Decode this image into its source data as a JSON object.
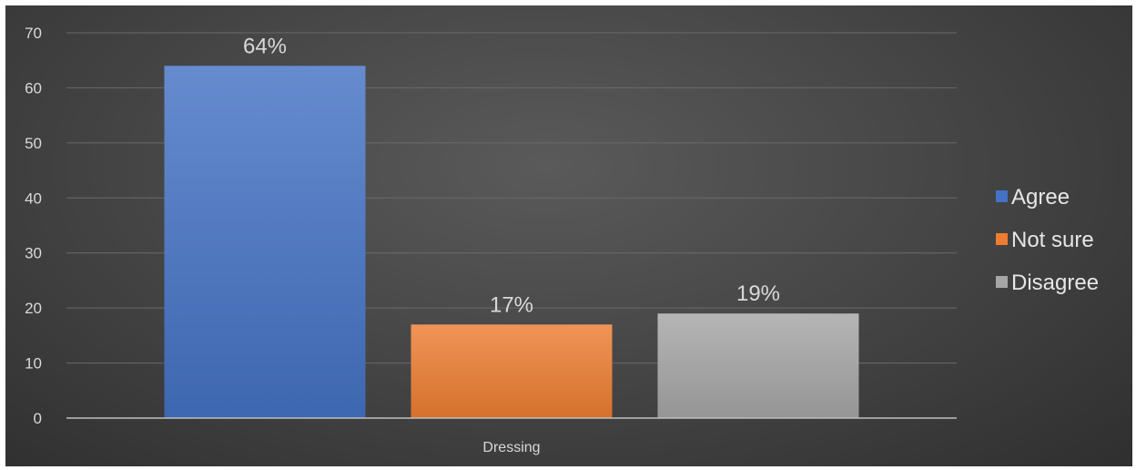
{
  "chart_data": {
    "type": "bar",
    "categories": [
      "Dressing"
    ],
    "series": [
      {
        "name": "Agree",
        "values": [
          64
        ],
        "label": "64%",
        "color": "#4472c4"
      },
      {
        "name": "Not sure",
        "values": [
          17
        ],
        "label": "17%",
        "color": "#ed7d31"
      },
      {
        "name": "Disagree",
        "values": [
          19
        ],
        "label": "19%",
        "color": "#a5a5a5"
      }
    ],
    "yticks": [
      0,
      10,
      20,
      30,
      40,
      50,
      60,
      70
    ],
    "ylim": [
      0,
      70
    ],
    "grid": true,
    "legend": "right",
    "title": "",
    "xlabel": "",
    "ylabel": ""
  }
}
